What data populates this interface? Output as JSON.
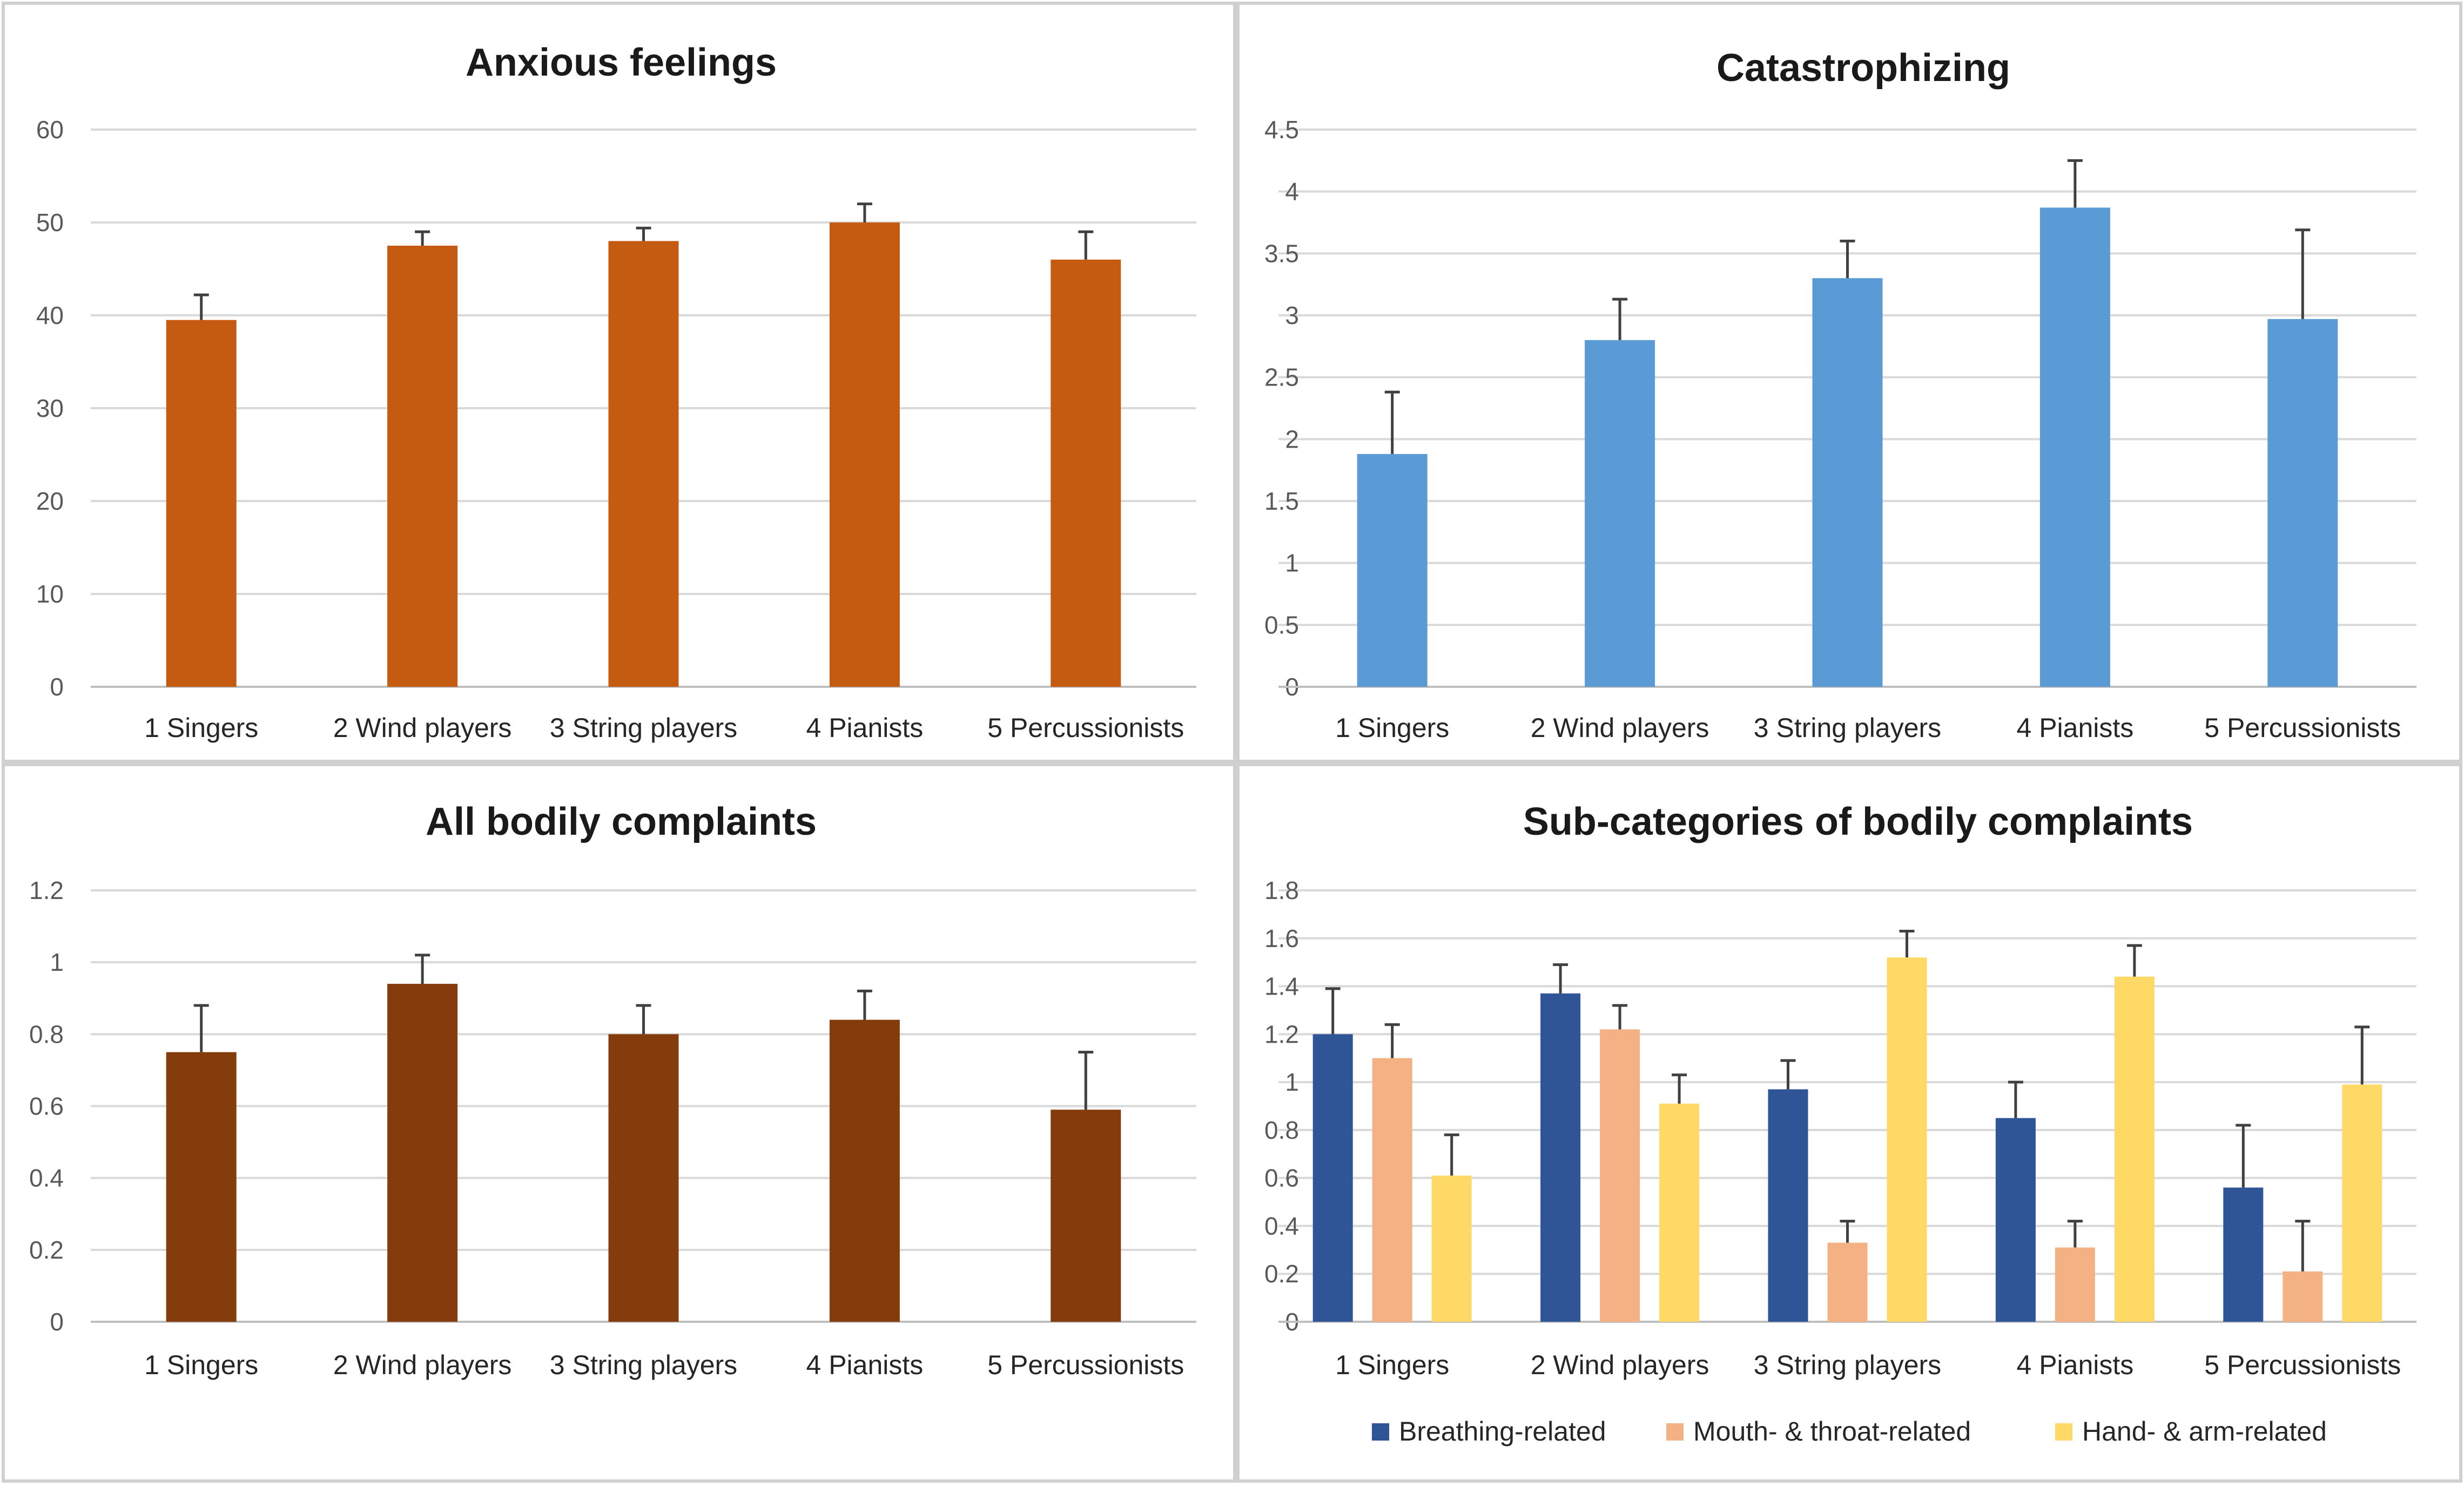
{
  "chart_data": [
    {
      "type": "bar",
      "title": "Anxious feelings",
      "categories": [
        "1 Singers",
        "2 Wind players",
        "3 String players",
        "4 Pianists",
        "5 Percussionists"
      ],
      "series": [
        {
          "name": "Anxious feelings",
          "color": "#c55a11",
          "values": [
            39.5,
            47.5,
            48,
            50,
            46
          ],
          "errors": [
            2.7,
            1.5,
            1.4,
            2,
            3
          ]
        }
      ],
      "ylim": [
        0,
        60
      ],
      "yticks": [
        0,
        10,
        20,
        30,
        40,
        50,
        60
      ],
      "ytick_labels": [
        "0",
        "10",
        "20",
        "30",
        "40",
        "50",
        "60"
      ],
      "grid": true
    },
    {
      "type": "bar",
      "title": "Catastrophizing",
      "categories": [
        "1 Singers",
        "2 Wind players",
        "3 String players",
        "4 Pianists",
        "5 Percussionists"
      ],
      "series": [
        {
          "name": "Catastrophizing",
          "color": "#5b9bd5",
          "values": [
            1.88,
            2.8,
            3.3,
            3.87,
            2.97
          ],
          "errors": [
            0.5,
            0.33,
            0.3,
            0.38,
            0.72
          ]
        }
      ],
      "ylim": [
        0,
        4.5
      ],
      "yticks": [
        0,
        0.5,
        1,
        1.5,
        2,
        2.5,
        3,
        3.5,
        4,
        4.5
      ],
      "ytick_labels": [
        "0",
        "0.5",
        "1",
        "1.5",
        "2",
        "2.5",
        "3",
        "3.5",
        "4",
        "4.5"
      ],
      "grid": true
    },
    {
      "type": "bar",
      "title": "All bodily complaints",
      "categories": [
        "1 Singers",
        "2 Wind players",
        "3 String players",
        "4 Pianists",
        "5 Percussionists"
      ],
      "series": [
        {
          "name": "All bodily complaints",
          "color": "#843c0c",
          "values": [
            0.75,
            0.94,
            0.8,
            0.84,
            0.59
          ],
          "errors": [
            0.13,
            0.08,
            0.08,
            0.08,
            0.16
          ]
        }
      ],
      "ylim": [
        0,
        1.2
      ],
      "yticks": [
        0,
        0.2,
        0.4,
        0.6,
        0.8,
        1,
        1.2
      ],
      "ytick_labels": [
        "0",
        "0.2",
        "0.4",
        "0.6",
        "0.8",
        "1",
        "1.2"
      ],
      "grid": true
    },
    {
      "type": "bar",
      "title": "Sub-categories of bodily complaints",
      "categories": [
        "1 Singers",
        "2 Wind players",
        "3 String players",
        "4 Pianists",
        "5 Percussionists"
      ],
      "series": [
        {
          "name": "Breathing-related",
          "color": "#2f5597",
          "values": [
            1.2,
            1.37,
            0.97,
            0.85,
            0.56
          ],
          "errors": [
            0.19,
            0.12,
            0.12,
            0.15,
            0.26
          ]
        },
        {
          "name": "Mouth- & throat-related",
          "color": "#f4b183",
          "values": [
            1.1,
            1.22,
            0.33,
            0.31,
            0.21
          ],
          "errors": [
            0.14,
            0.1,
            0.09,
            0.11,
            0.21
          ]
        },
        {
          "name": "Hand- & arm-related",
          "color": "#ffd966",
          "values": [
            0.61,
            0.91,
            1.52,
            1.44,
            0.99
          ],
          "errors": [
            0.17,
            0.12,
            0.11,
            0.13,
            0.24
          ]
        }
      ],
      "ylim": [
        0,
        1.8
      ],
      "yticks": [
        0,
        0.2,
        0.4,
        0.6,
        0.8,
        1,
        1.2,
        1.4,
        1.6,
        1.8
      ],
      "ytick_labels": [
        "0",
        "0.2",
        "0.4",
        "0.6",
        "0.8",
        "1",
        "1.2",
        "1.4",
        "1.6",
        "1.8"
      ],
      "grid": true,
      "legend_position": "bottom"
    }
  ]
}
